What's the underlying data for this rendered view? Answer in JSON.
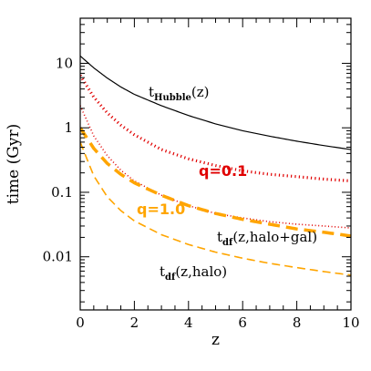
{
  "chart_data": {
    "type": "line",
    "xlabel": "z",
    "ylabel": "time  (Gyr)",
    "xlim": [
      0,
      10
    ],
    "ylim": [
      0.0015,
      50
    ],
    "yscale": "log",
    "grid": false,
    "x_ticks": [
      0,
      2,
      4,
      6,
      8,
      10
    ],
    "y_ticks": [
      0.01,
      0.1,
      1,
      10
    ],
    "x_tick_labels": [
      "0",
      "2",
      "4",
      "6",
      "8",
      "10"
    ],
    "y_tick_labels": [
      "0.01",
      "0.1",
      "1",
      "10"
    ],
    "series": [
      {
        "label_main": "t",
        "label_sub": "Hubble",
        "label_tail": "(z)",
        "color": "#000000",
        "style": "solid",
        "x": [
          0,
          0.5,
          1,
          1.5,
          2,
          3,
          4,
          5,
          6,
          7,
          8,
          9,
          10
        ],
        "y": [
          13.0,
          8.5,
          5.9,
          4.3,
          3.3,
          2.2,
          1.55,
          1.15,
          0.9,
          0.74,
          0.62,
          0.53,
          0.46
        ]
      },
      {
        "label": "q=0.1",
        "color": "#e00000",
        "style": "dotted-thick",
        "x": [
          0,
          0.5,
          1,
          1.5,
          2,
          3,
          4,
          5,
          6,
          7,
          8,
          9,
          10
        ],
        "y": [
          6.5,
          3.0,
          1.7,
          1.1,
          0.78,
          0.46,
          0.33,
          0.26,
          0.215,
          0.19,
          0.175,
          0.16,
          0.15
        ]
      },
      {
        "color": "#e00000",
        "style": "dotted-thin",
        "x": [
          0,
          0.5,
          1,
          1.5,
          2,
          3,
          4,
          5,
          6,
          7,
          8,
          9,
          10
        ],
        "y": [
          2.2,
          0.75,
          0.37,
          0.22,
          0.15,
          0.09,
          0.062,
          0.047,
          0.04,
          0.035,
          0.032,
          0.03,
          0.028
        ]
      },
      {
        "label": "q=1.0",
        "color": "#ffa500",
        "style": "dashed-thick",
        "x": [
          0,
          0.5,
          1,
          1.5,
          2,
          3,
          4,
          5,
          6,
          7,
          8,
          9,
          10
        ],
        "y": [
          1.0,
          0.48,
          0.28,
          0.19,
          0.14,
          0.09,
          0.062,
          0.047,
          0.038,
          0.032,
          0.027,
          0.024,
          0.021
        ]
      },
      {
        "color": "#ffa500",
        "style": "dashed-thin",
        "x": [
          0,
          0.5,
          1,
          1.5,
          2,
          3,
          4,
          5,
          6,
          7,
          8,
          9,
          10
        ],
        "y": [
          0.6,
          0.18,
          0.085,
          0.052,
          0.036,
          0.022,
          0.0155,
          0.0118,
          0.0095,
          0.0079,
          0.0068,
          0.0059,
          0.0052
        ]
      }
    ],
    "annotations": {
      "hubble": {
        "main": "t",
        "sub": "Hubble",
        "tail": "(z)"
      },
      "q01": {
        "text": "q=0.1"
      },
      "q10": {
        "text": "q=1.0"
      },
      "df_halo_gal": {
        "main": "t",
        "sub": "df",
        "tail": "(z,halo+gal)"
      },
      "df_halo": {
        "main": "t",
        "sub": "df",
        "tail": "(z,halo)"
      }
    }
  }
}
